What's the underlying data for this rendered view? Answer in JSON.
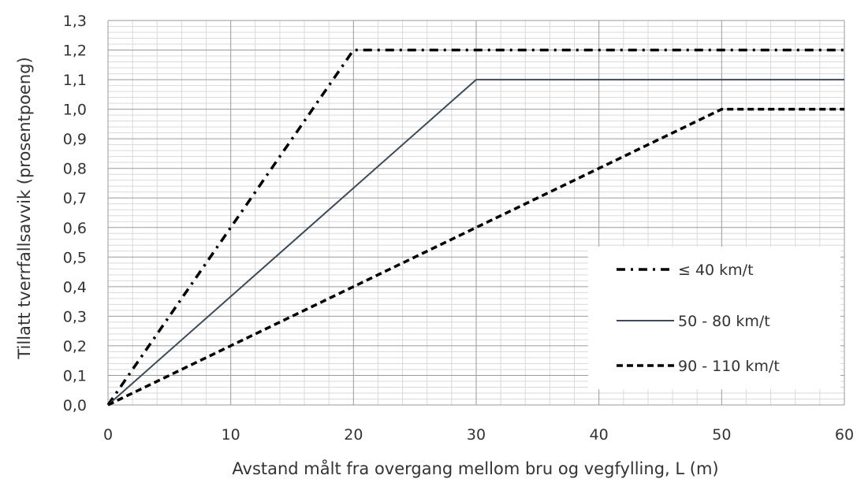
{
  "chart_data": {
    "type": "line",
    "title": "",
    "xlabel": "Avstand målt fra overgang mellom bru og vegfylling, L (m)",
    "ylabel": "Tillatt tverrfallsavvik (prosentpoeng)",
    "xlim": [
      0,
      60
    ],
    "ylim": [
      0,
      1.3
    ],
    "x_ticks": [
      "0",
      "10",
      "20",
      "30",
      "40",
      "50",
      "60"
    ],
    "y_ticks": [
      "0,0",
      "0,1",
      "0,2",
      "0,3",
      "0,4",
      "0,5",
      "0,6",
      "0,7",
      "0,8",
      "0,9",
      "1,0",
      "1,1",
      "1,2",
      "1,3"
    ],
    "grid": true,
    "legend_position": "bottom-right",
    "series": [
      {
        "name": "≤ 40 km/t",
        "style": "dash-dot",
        "color": "#000000",
        "x": [
          0,
          20,
          60
        ],
        "y": [
          0,
          1.2,
          1.2
        ]
      },
      {
        "name": "50 - 80 km/t",
        "style": "solid",
        "color": "#3e4a57",
        "x": [
          0,
          30,
          60
        ],
        "y": [
          0,
          1.1,
          1.1
        ]
      },
      {
        "name": "90 - 110 km/t",
        "style": "dashed",
        "color": "#000000",
        "x": [
          0,
          50,
          60
        ],
        "y": [
          0,
          1.0,
          1.0
        ]
      }
    ]
  }
}
